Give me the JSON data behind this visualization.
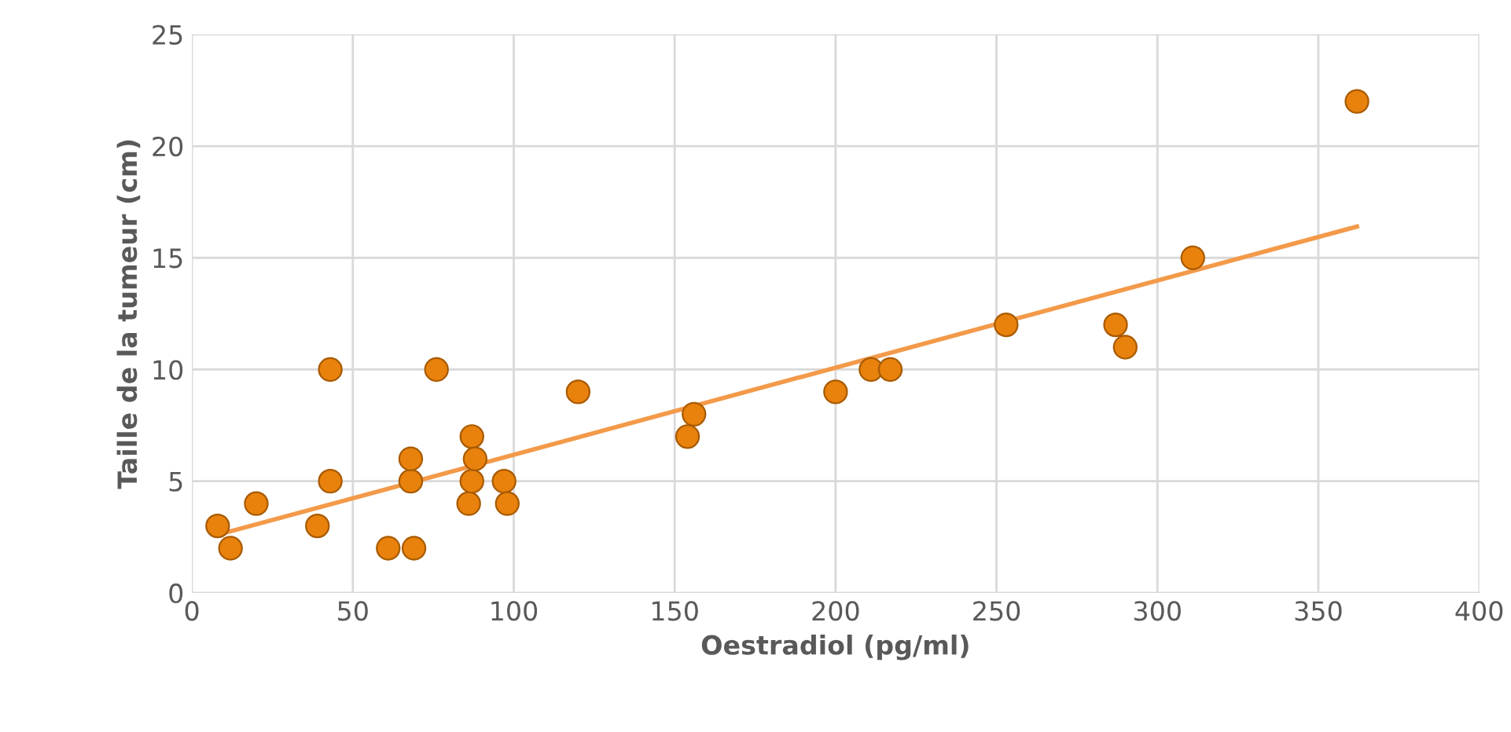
{
  "chart_data": {
    "type": "scatter",
    "xlabel": "Oestradiol (pg/ml)",
    "ylabel": "Taille de la tumeur (cm)",
    "xlim": [
      0,
      400
    ],
    "ylim": [
      0,
      25
    ],
    "xticks": [
      0,
      50,
      100,
      150,
      200,
      250,
      300,
      350,
      400
    ],
    "yticks": [
      0,
      5,
      10,
      15,
      20,
      25
    ],
    "grid": true,
    "series": [
      {
        "marker": "circle",
        "color": "#e8820c",
        "x": [
          8,
          12,
          20,
          39,
          43,
          43,
          61,
          69,
          68,
          68,
          76,
          86,
          87,
          87,
          88,
          97,
          98,
          120,
          154,
          156,
          200,
          211,
          217,
          253,
          287,
          290,
          311,
          362
        ],
        "values": [
          3,
          2,
          4,
          3,
          5,
          10,
          2,
          2,
          5,
          6,
          10,
          4,
          5,
          7,
          6,
          5,
          4,
          9,
          7,
          8,
          9,
          10,
          10,
          12,
          12,
          11,
          15,
          22
        ]
      },
      {
        "type": "line",
        "color": "#f39a4a",
        "x": [
          8,
          362
        ],
        "values": [
          2.6,
          16.4
        ]
      }
    ]
  }
}
